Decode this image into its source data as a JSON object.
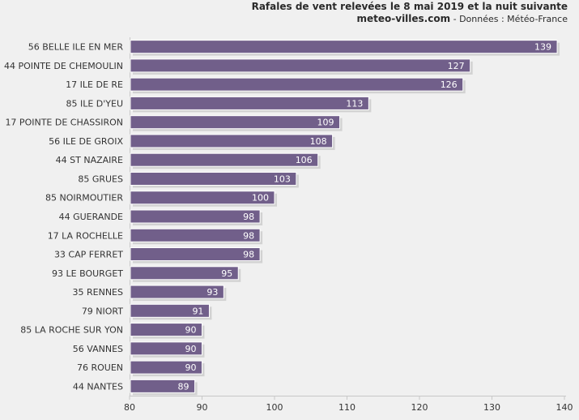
{
  "chart_data": {
    "type": "bar",
    "orientation": "horizontal",
    "title": "Rafales de vent relevées le 8 mai 2019 et la nuit suivante",
    "subtitle_site": "meteo-villes.com",
    "subtitle_source": " - Données : Météo-France",
    "categories": [
      "56 BELLE ILE EN MER",
      "44 POINTE DE CHEMOULIN",
      "17 ILE DE RE",
      "85 ILE D'YEU",
      "17 POINTE DE CHASSIRON",
      "56 ILE DE GROIX",
      "44 ST NAZAIRE",
      "85 GRUES",
      "85 NOIRMOUTIER",
      "44 GUERANDE",
      "17 LA ROCHELLE",
      "33 CAP FERRET",
      "93 LE BOURGET",
      "35 RENNES",
      "79 NIORT",
      "85 LA ROCHE SUR YON",
      "56 VANNES",
      "76 ROUEN",
      "44 NANTES"
    ],
    "values": [
      139,
      127,
      126,
      113,
      109,
      108,
      106,
      103,
      100,
      98,
      98,
      98,
      95,
      93,
      91,
      90,
      90,
      90,
      89
    ],
    "xlim": [
      80,
      140
    ],
    "xticks": [
      80,
      90,
      100,
      110,
      120,
      130,
      140
    ],
    "grid": false,
    "bar_color": "#715f8a",
    "background_color": "#f0f0f0"
  }
}
